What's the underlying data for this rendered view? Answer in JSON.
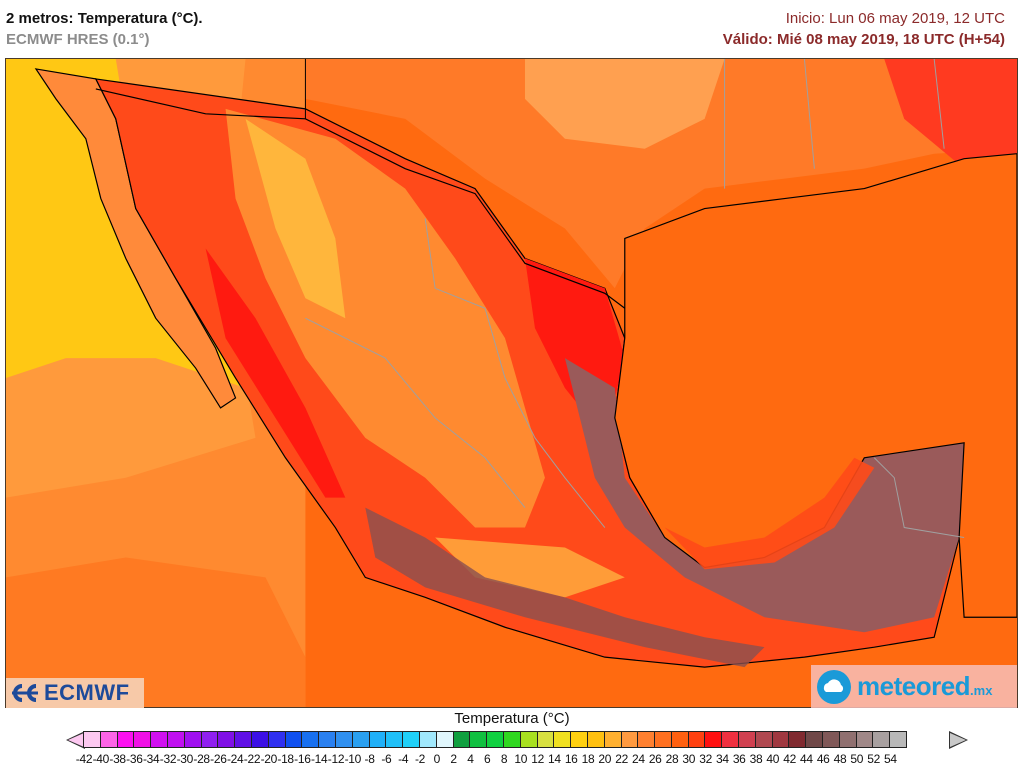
{
  "header": {
    "title": "2 metros: Temperatura (°C).",
    "model": "ECMWF HRES (0.1°)",
    "init": "Inicio: Lun 06 may 2019, 12 UTC",
    "valid": "Válido: Mié 08 may 2019, 18 UTC (H+54)"
  },
  "logos": {
    "ecmwf": "ECMWF",
    "meteored": "meteored",
    "meteored_tld": ".mx"
  },
  "map": {
    "region": "México, Golfo de México y sur de EE.UU.",
    "variable": "Temperatura a 2 m",
    "colors": {
      "ocean_pacific_north": "#ffc814",
      "ocean_pacific_mid": "#ff9a3c",
      "ocean_pacific_south": "#ff7a22",
      "gulf": "#ff6a10",
      "land_hot": "#ff1a10",
      "land_very_hot": "#9a5a5a",
      "highlands": "#ffb040",
      "coast_line": "#000000",
      "state_borders": "#a0a0a0"
    }
  },
  "colorbar": {
    "title": "Temperatura (°C)",
    "labels": [
      "-42",
      "-40",
      "-38",
      "-36",
      "-34",
      "-32",
      "-30",
      "-28",
      "-26",
      "-24",
      "-22",
      "-20",
      "-18",
      "-16",
      "-14",
      "-12",
      "-10",
      "-8",
      "-6",
      "-4",
      "-2",
      "0",
      "2",
      "4",
      "6",
      "8",
      "10",
      "12",
      "14",
      "16",
      "18",
      "20",
      "22",
      "24",
      "26",
      "28",
      "30",
      "32",
      "34",
      "36",
      "38",
      "40",
      "42",
      "44",
      "46",
      "48",
      "50",
      "52",
      "54"
    ],
    "colors": [
      "#fcc8f0",
      "#fc64e6",
      "#fc10f0",
      "#f010e6",
      "#d010f0",
      "#c010f0",
      "#a010f0",
      "#9020f0",
      "#8010e6",
      "#6010e6",
      "#3c10e6",
      "#3030f0",
      "#1050f0",
      "#1870f0",
      "#2a80f0",
      "#3090f0",
      "#2aa0f0",
      "#20b0f8",
      "#20c0f8",
      "#20d0f8",
      "#a0e8fc",
      "#e0f6fc",
      "#10a040",
      "#10c040",
      "#10d040",
      "#30d820",
      "#a8e020",
      "#d8e040",
      "#f0e020",
      "#ffd010",
      "#ffc010",
      "#ffb030",
      "#ff9a40",
      "#ff8030",
      "#ff7020",
      "#ff6010",
      "#ff4010",
      "#ff1010",
      "#f03040",
      "#d04050",
      "#b04850",
      "#a03840",
      "#802a30",
      "#704848",
      "#805858",
      "#907070",
      "#a08888",
      "#a8a0a0",
      "#b8b8b8"
    ]
  }
}
